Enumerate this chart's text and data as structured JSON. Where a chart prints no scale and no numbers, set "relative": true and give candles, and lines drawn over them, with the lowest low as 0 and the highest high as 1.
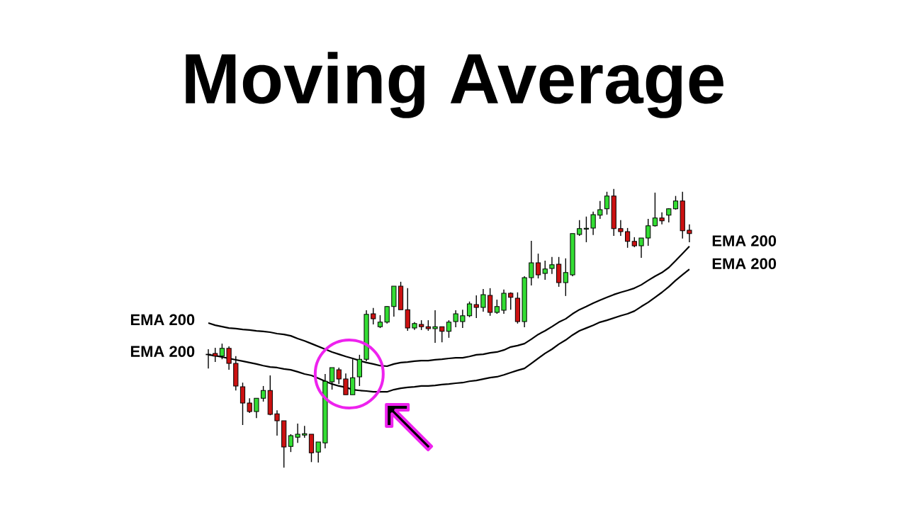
{
  "chart_data": {
    "type": "candlestick",
    "title": "Moving Average",
    "relative": true,
    "categories": [
      null,
      null,
      null,
      null,
      null,
      null,
      null,
      null,
      null,
      null,
      null,
      null,
      null,
      null,
      null,
      null,
      null,
      null,
      null,
      null,
      null,
      null,
      null,
      null,
      null,
      null,
      null,
      null,
      null,
      null,
      null,
      null,
      null,
      null,
      null,
      null,
      null,
      null,
      null,
      null,
      null,
      null,
      null,
      null,
      null,
      null,
      null,
      null,
      null,
      null,
      null,
      null,
      null,
      null,
      null,
      null,
      null,
      null,
      null,
      null,
      null,
      null,
      null,
      null,
      null,
      null,
      null,
      null,
      null,
      null,
      null
    ],
    "ohlc": [
      [
        0.407,
        0.425,
        0.356,
        0.405
      ],
      [
        0.41,
        0.43,
        0.379,
        0.4
      ],
      [
        0.4,
        0.445,
        0.389,
        0.428
      ],
      [
        0.428,
        0.435,
        0.351,
        0.374
      ],
      [
        0.374,
        0.4,
        0.277,
        0.293
      ],
      [
        0.29,
        0.305,
        0.153,
        0.232
      ],
      [
        0.232,
        0.249,
        0.196,
        0.201
      ],
      [
        0.201,
        0.249,
        0.178,
        0.249
      ],
      [
        0.249,
        0.293,
        0.237,
        0.277
      ],
      [
        0.277,
        0.331,
        0.188,
        0.191
      ],
      [
        0.193,
        0.206,
        0.115,
        0.168
      ],
      [
        0.168,
        0.168,
        0.0,
        0.074
      ],
      [
        0.076,
        0.12,
        0.056,
        0.115
      ],
      [
        0.109,
        0.158,
        0.089,
        0.12
      ],
      [
        0.117,
        0.15,
        0.107,
        0.122
      ],
      [
        0.12,
        0.12,
        0.02,
        0.053
      ],
      [
        0.056,
        0.092,
        0.018,
        0.092
      ],
      [
        0.089,
        0.336,
        0.069,
        0.31
      ],
      [
        0.308,
        0.359,
        0.28,
        0.359
      ],
      [
        0.351,
        0.359,
        0.3,
        0.318
      ],
      [
        0.318,
        0.338,
        0.262,
        0.262
      ],
      [
        0.262,
        0.389,
        0.262,
        0.323
      ],
      [
        0.326,
        0.405,
        0.293,
        0.389
      ],
      [
        0.389,
        0.565,
        0.382,
        0.55
      ],
      [
        0.552,
        0.573,
        0.514,
        0.534
      ],
      [
        0.506,
        0.547,
        0.501,
        0.522
      ],
      [
        0.522,
        0.58,
        0.517,
        0.578
      ],
      [
        0.578,
        0.651,
        0.542,
        0.651
      ],
      [
        0.651,
        0.667,
        0.567,
        0.567
      ],
      [
        0.567,
        0.644,
        0.491,
        0.501
      ],
      [
        0.501,
        0.522,
        0.494,
        0.517
      ],
      [
        0.514,
        0.529,
        0.494,
        0.506
      ],
      [
        0.506,
        0.529,
        0.491,
        0.499
      ],
      [
        0.499,
        0.565,
        0.448,
        0.506
      ],
      [
        0.506,
        0.506,
        0.45,
        0.489
      ],
      [
        0.489,
        0.529,
        0.466,
        0.522
      ],
      [
        0.524,
        0.565,
        0.504,
        0.552
      ],
      [
        0.524,
        0.567,
        0.501,
        0.545
      ],
      [
        0.545,
        0.596,
        0.54,
        0.588
      ],
      [
        0.585,
        0.618,
        0.537,
        0.575
      ],
      [
        0.575,
        0.641,
        0.56,
        0.621
      ],
      [
        0.618,
        0.644,
        0.545,
        0.557
      ],
      [
        0.557,
        0.603,
        0.552,
        0.578
      ],
      [
        0.565,
        0.639,
        0.552,
        0.626
      ],
      [
        0.626,
        0.629,
        0.567,
        0.611
      ],
      [
        0.608,
        0.629,
        0.517,
        0.524
      ],
      [
        0.524,
        0.687,
        0.504,
        0.682
      ],
      [
        0.682,
        0.814,
        0.654,
        0.735
      ],
      [
        0.735,
        0.768,
        0.679,
        0.692
      ],
      [
        0.697,
        0.743,
        0.674,
        0.713
      ],
      [
        0.715,
        0.756,
        0.695,
        0.728
      ],
      [
        0.73,
        0.756,
        0.649,
        0.664
      ],
      [
        0.664,
        0.751,
        0.616,
        0.7
      ],
      [
        0.692,
        0.84,
        0.687,
        0.84
      ],
      [
        0.837,
        0.888,
        0.832,
        0.858
      ],
      [
        0.856,
        0.901,
        0.809,
        0.859
      ],
      [
        0.86,
        0.919,
        0.835,
        0.908
      ],
      [
        0.906,
        0.957,
        0.893,
        0.926
      ],
      [
        0.929,
        0.99,
        0.908,
        0.975
      ],
      [
        0.975,
        1.0,
        0.832,
        0.858
      ],
      [
        0.858,
        0.888,
        0.832,
        0.847
      ],
      [
        0.847,
        0.86,
        0.789,
        0.812
      ],
      [
        0.812,
        0.827,
        0.791,
        0.796
      ],
      [
        0.796,
        0.824,
        0.753,
        0.824
      ],
      [
        0.824,
        0.893,
        0.796,
        0.868
      ],
      [
        0.868,
        0.987,
        0.865,
        0.896
      ],
      [
        0.896,
        0.916,
        0.873,
        0.886
      ],
      [
        0.906,
        0.931,
        0.88,
        0.929
      ],
      [
        0.929,
        0.975,
        0.926,
        0.957
      ],
      [
        0.957,
        0.99,
        0.822,
        0.85
      ],
      [
        0.852,
        0.873,
        0.809,
        0.84
      ]
    ],
    "colors": [
      "#cc1111",
      "#cc1111",
      "#33dd33",
      "#cc1111",
      "#cc1111",
      "#cc1111",
      "#cc1111",
      "#33dd33",
      "#33dd33",
      "#cc1111",
      "#cc1111",
      "#cc1111",
      "#33dd33",
      "#33dd33",
      "#33dd33",
      "#cc1111",
      "#33dd33",
      "#33dd33",
      "#33dd33",
      "#cc1111",
      "#cc1111",
      "#33dd33",
      "#33dd33",
      "#33dd33",
      "#cc1111",
      "#33dd33",
      "#33dd33",
      "#33dd33",
      "#cc1111",
      "#cc1111",
      "#33dd33",
      "#cc1111",
      "#cc1111",
      "#33dd33",
      "#cc1111",
      "#33dd33",
      "#33dd33",
      "#33dd33",
      "#33dd33",
      "#cc1111",
      "#33dd33",
      "#cc1111",
      "#33dd33",
      "#33dd33",
      "#cc1111",
      "#cc1111",
      "#33dd33",
      "#33dd33",
      "#cc1111",
      "#33dd33",
      "#33dd33",
      "#cc1111",
      "#33dd33",
      "#33dd33",
      "#33dd33",
      "#33dd33",
      "#33dd33",
      "#33dd33",
      "#33dd33",
      "#cc1111",
      "#cc1111",
      "#cc1111",
      "#cc1111",
      "#33dd33",
      "#33dd33",
      "#33dd33",
      "#cc1111",
      "#33dd33",
      "#33dd33",
      "#cc1111",
      "#cc1111"
    ],
    "series": [
      {
        "type": "line",
        "color": "#000000",
        "values": [
          0.519,
          0.511,
          0.506,
          0.501,
          0.499,
          0.496,
          0.494,
          0.491,
          0.489,
          0.486,
          0.481,
          0.478,
          0.473,
          0.463,
          0.455,
          0.445,
          0.435,
          0.425,
          0.415,
          0.407,
          0.399,
          0.392,
          0.384,
          0.377,
          0.372,
          0.366,
          0.364,
          0.372,
          0.377,
          0.379,
          0.382,
          0.384,
          0.384,
          0.387,
          0.389,
          0.392,
          0.394,
          0.394,
          0.399,
          0.405,
          0.407,
          0.412,
          0.415,
          0.422,
          0.433,
          0.438,
          0.445,
          0.461,
          0.478,
          0.491,
          0.506,
          0.522,
          0.534,
          0.552,
          0.567,
          0.578,
          0.59,
          0.601,
          0.611,
          0.621,
          0.629,
          0.636,
          0.644,
          0.656,
          0.672,
          0.687,
          0.7,
          0.718,
          0.743,
          0.768,
          0.794
        ]
      },
      {
        "type": "line",
        "color": "#000000",
        "values": [
          0.405,
          0.402,
          0.397,
          0.392,
          0.387,
          0.382,
          0.377,
          0.372,
          0.366,
          0.361,
          0.359,
          0.354,
          0.351,
          0.344,
          0.336,
          0.331,
          0.321,
          0.31,
          0.3,
          0.293,
          0.288,
          0.28,
          0.277,
          0.275,
          0.272,
          0.272,
          0.272,
          0.28,
          0.285,
          0.288,
          0.29,
          0.293,
          0.293,
          0.295,
          0.298,
          0.3,
          0.303,
          0.305,
          0.31,
          0.313,
          0.318,
          0.323,
          0.326,
          0.333,
          0.341,
          0.349,
          0.356,
          0.374,
          0.392,
          0.41,
          0.425,
          0.443,
          0.458,
          0.476,
          0.491,
          0.501,
          0.511,
          0.522,
          0.529,
          0.537,
          0.545,
          0.552,
          0.562,
          0.578,
          0.593,
          0.611,
          0.629,
          0.649,
          0.672,
          0.692,
          0.712
        ]
      }
    ],
    "annotations": [
      "EMA 200",
      "EMA 200",
      "EMA 200",
      "EMA 200"
    ]
  }
}
